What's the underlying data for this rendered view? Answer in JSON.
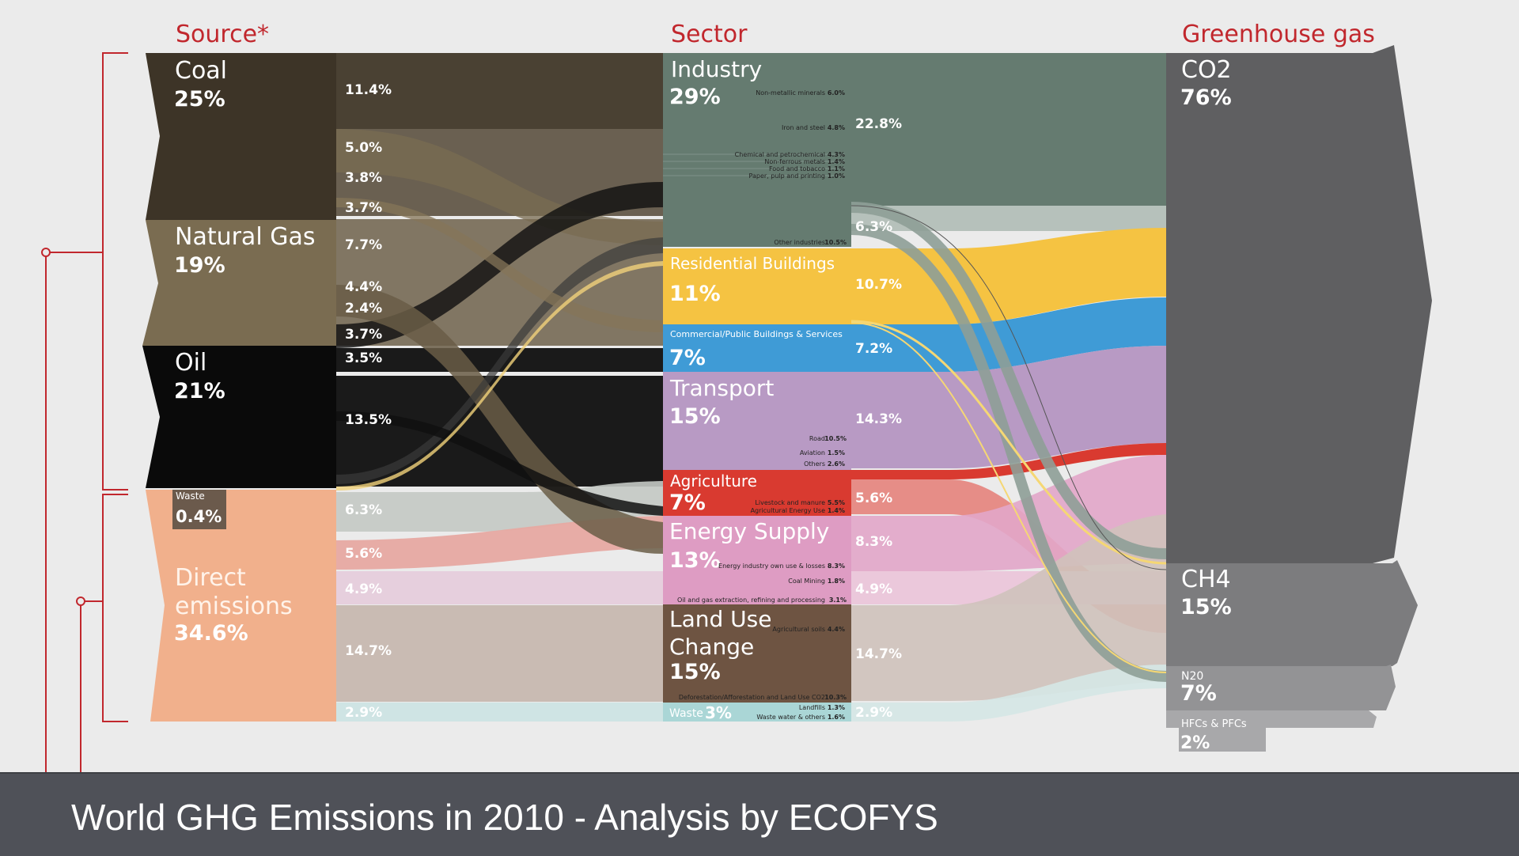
{
  "headers": {
    "source": "Source*",
    "sector": "Sector",
    "gas": "Greenhouse gas"
  },
  "sources": {
    "coal": {
      "name": "Coal",
      "pct": "25%",
      "color": "#3d3427"
    },
    "gas": {
      "name": "Natural Gas",
      "pct": "19%",
      "color": "#7a6c51"
    },
    "oil": {
      "name": "Oil",
      "pct": "21%",
      "color": "#0a0a0a"
    },
    "waste": {
      "name": "Waste",
      "pct": "0.4%",
      "color": "#6b5a4c"
    },
    "direct": {
      "name_line1": "Direct",
      "name_line2": "emissions",
      "pct": "34.6%",
      "color": "#f1b08c"
    }
  },
  "source_flows": [
    "11.4%",
    "5.0%",
    "3.8%",
    "3.7%",
    "7.7%",
    "4.4%",
    "2.4%",
    "3.7%",
    "3.5%",
    "13.5%",
    "6.3%",
    "5.6%",
    "4.9%",
    "14.7%",
    "2.9%"
  ],
  "sectors": {
    "industry": {
      "name": "Industry",
      "pct": "29%",
      "color": "#657b70",
      "subs": [
        [
          "Non-metallic minerals",
          "6.0%"
        ],
        [
          "Iron and steel",
          "4.8%"
        ],
        [
          "Chemical and petrochemical",
          "4.3%"
        ],
        [
          "Non-ferrous metals",
          "1.4%"
        ],
        [
          "Food and tobacco",
          "1.1%"
        ],
        [
          "Paper, pulp and printing",
          "1.0%"
        ],
        [
          "Other industries",
          "10.5%"
        ]
      ]
    },
    "residential": {
      "name": "Residential Buildings",
      "pct": "11%",
      "color": "#f5c342"
    },
    "commercial": {
      "name": "Commercial/Public Buildings & Services",
      "pct": "7%",
      "color": "#3f9bd6"
    },
    "transport": {
      "name": "Transport",
      "pct": "15%",
      "color": "#b89ac4",
      "subs": [
        [
          "Road",
          "10.5%"
        ],
        [
          "Aviation",
          "1.5%"
        ],
        [
          "Others",
          "2.6%"
        ]
      ]
    },
    "agriculture": {
      "name": "Agriculture",
      "pct": "7%",
      "color": "#d93a30",
      "subs": [
        [
          "Livestock and manure",
          "5.5%"
        ],
        [
          "Agricultural Energy Use",
          "1.4%"
        ]
      ]
    },
    "energy": {
      "name": "Energy Supply",
      "pct": "13%",
      "color": "#de9cc3",
      "subs": [
        [
          "Energy industry own use & losses",
          "8.3%"
        ],
        [
          "Coal Mining",
          "1.8%"
        ],
        [
          "Oil and gas extraction, refining and processing",
          "3.1%"
        ]
      ]
    },
    "landuse": {
      "name_line1": "Land Use",
      "name_line2": "Change",
      "pct": "15%",
      "color": "#6e5442",
      "subs": [
        [
          "Agricultural soils",
          "4.4%"
        ],
        [
          "Deforestation/Afforestation and Land Use CO2",
          "10.3%"
        ]
      ]
    },
    "waste": {
      "name": "Waste",
      "pct": "3%",
      "color": "#aad6d6",
      "subs": [
        [
          "Landfills",
          "1.3%"
        ],
        [
          "Waste water & others",
          "1.6%"
        ]
      ]
    }
  },
  "sector_flows": [
    "22.8%",
    "6.3%",
    "10.7%",
    "7.2%",
    "14.3%",
    "5.6%",
    "8.3%",
    "4.9%",
    "14.7%",
    "2.9%"
  ],
  "gases": {
    "co2": {
      "name": "CO2",
      "pct": "76%",
      "color": "#5f5f61"
    },
    "ch4": {
      "name": "CH4",
      "pct": "15%",
      "color": "#7c7c7e"
    },
    "n2o": {
      "name": "N20",
      "pct": "7%",
      "color": "#939395"
    },
    "hfc": {
      "name": "HFCs & PFCs",
      "pct": "2%",
      "color": "#a8a8aa"
    }
  },
  "footer": {
    "title": "World GHG Emissions in 2010 - Analysis by ECOFYS"
  }
}
